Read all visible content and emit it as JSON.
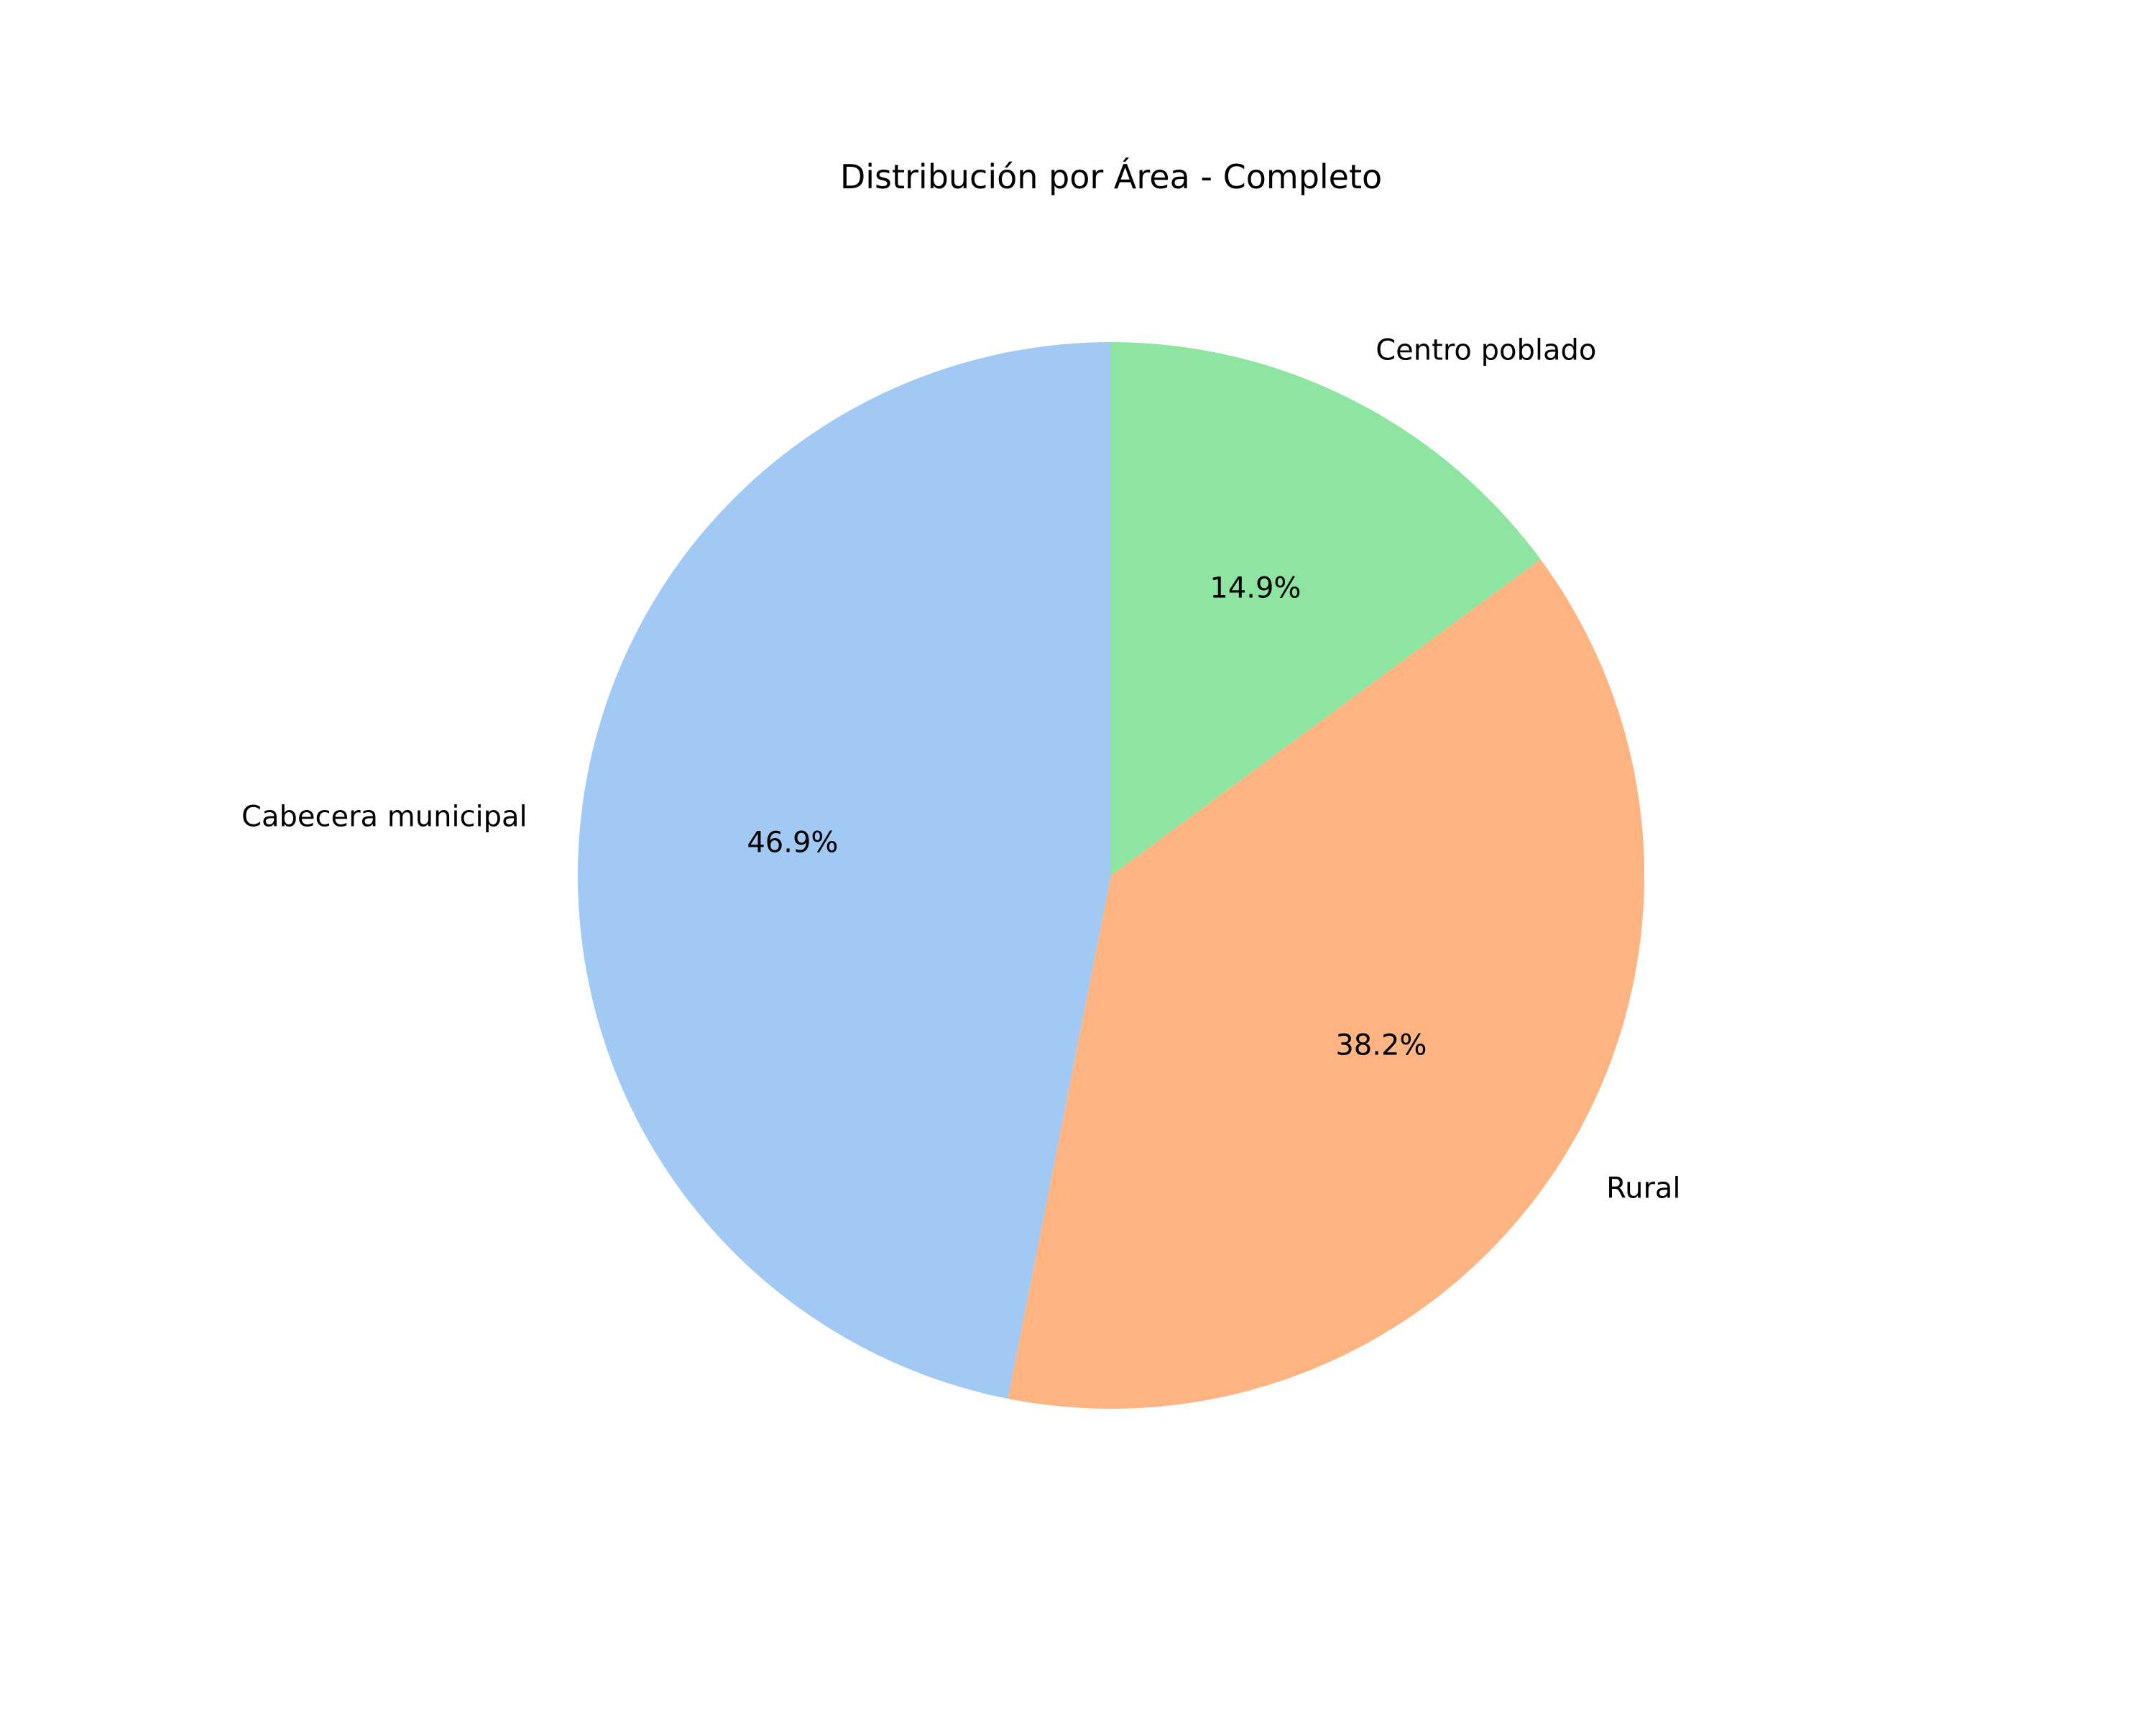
{
  "chart_data": {
    "type": "pie",
    "title": "Distribución por Área - Completo",
    "categories": [
      "Cabecera municipal",
      "Rural",
      "Centro poblado"
    ],
    "values": [
      46.9,
      38.2,
      14.9
    ],
    "value_labels": [
      "46.9%",
      "38.2%",
      "14.9%"
    ],
    "colors": [
      "#a1c9f4",
      "#ffb482",
      "#8de5a1"
    ],
    "start_angle_deg": 90,
    "direction": "counterclockwise"
  }
}
